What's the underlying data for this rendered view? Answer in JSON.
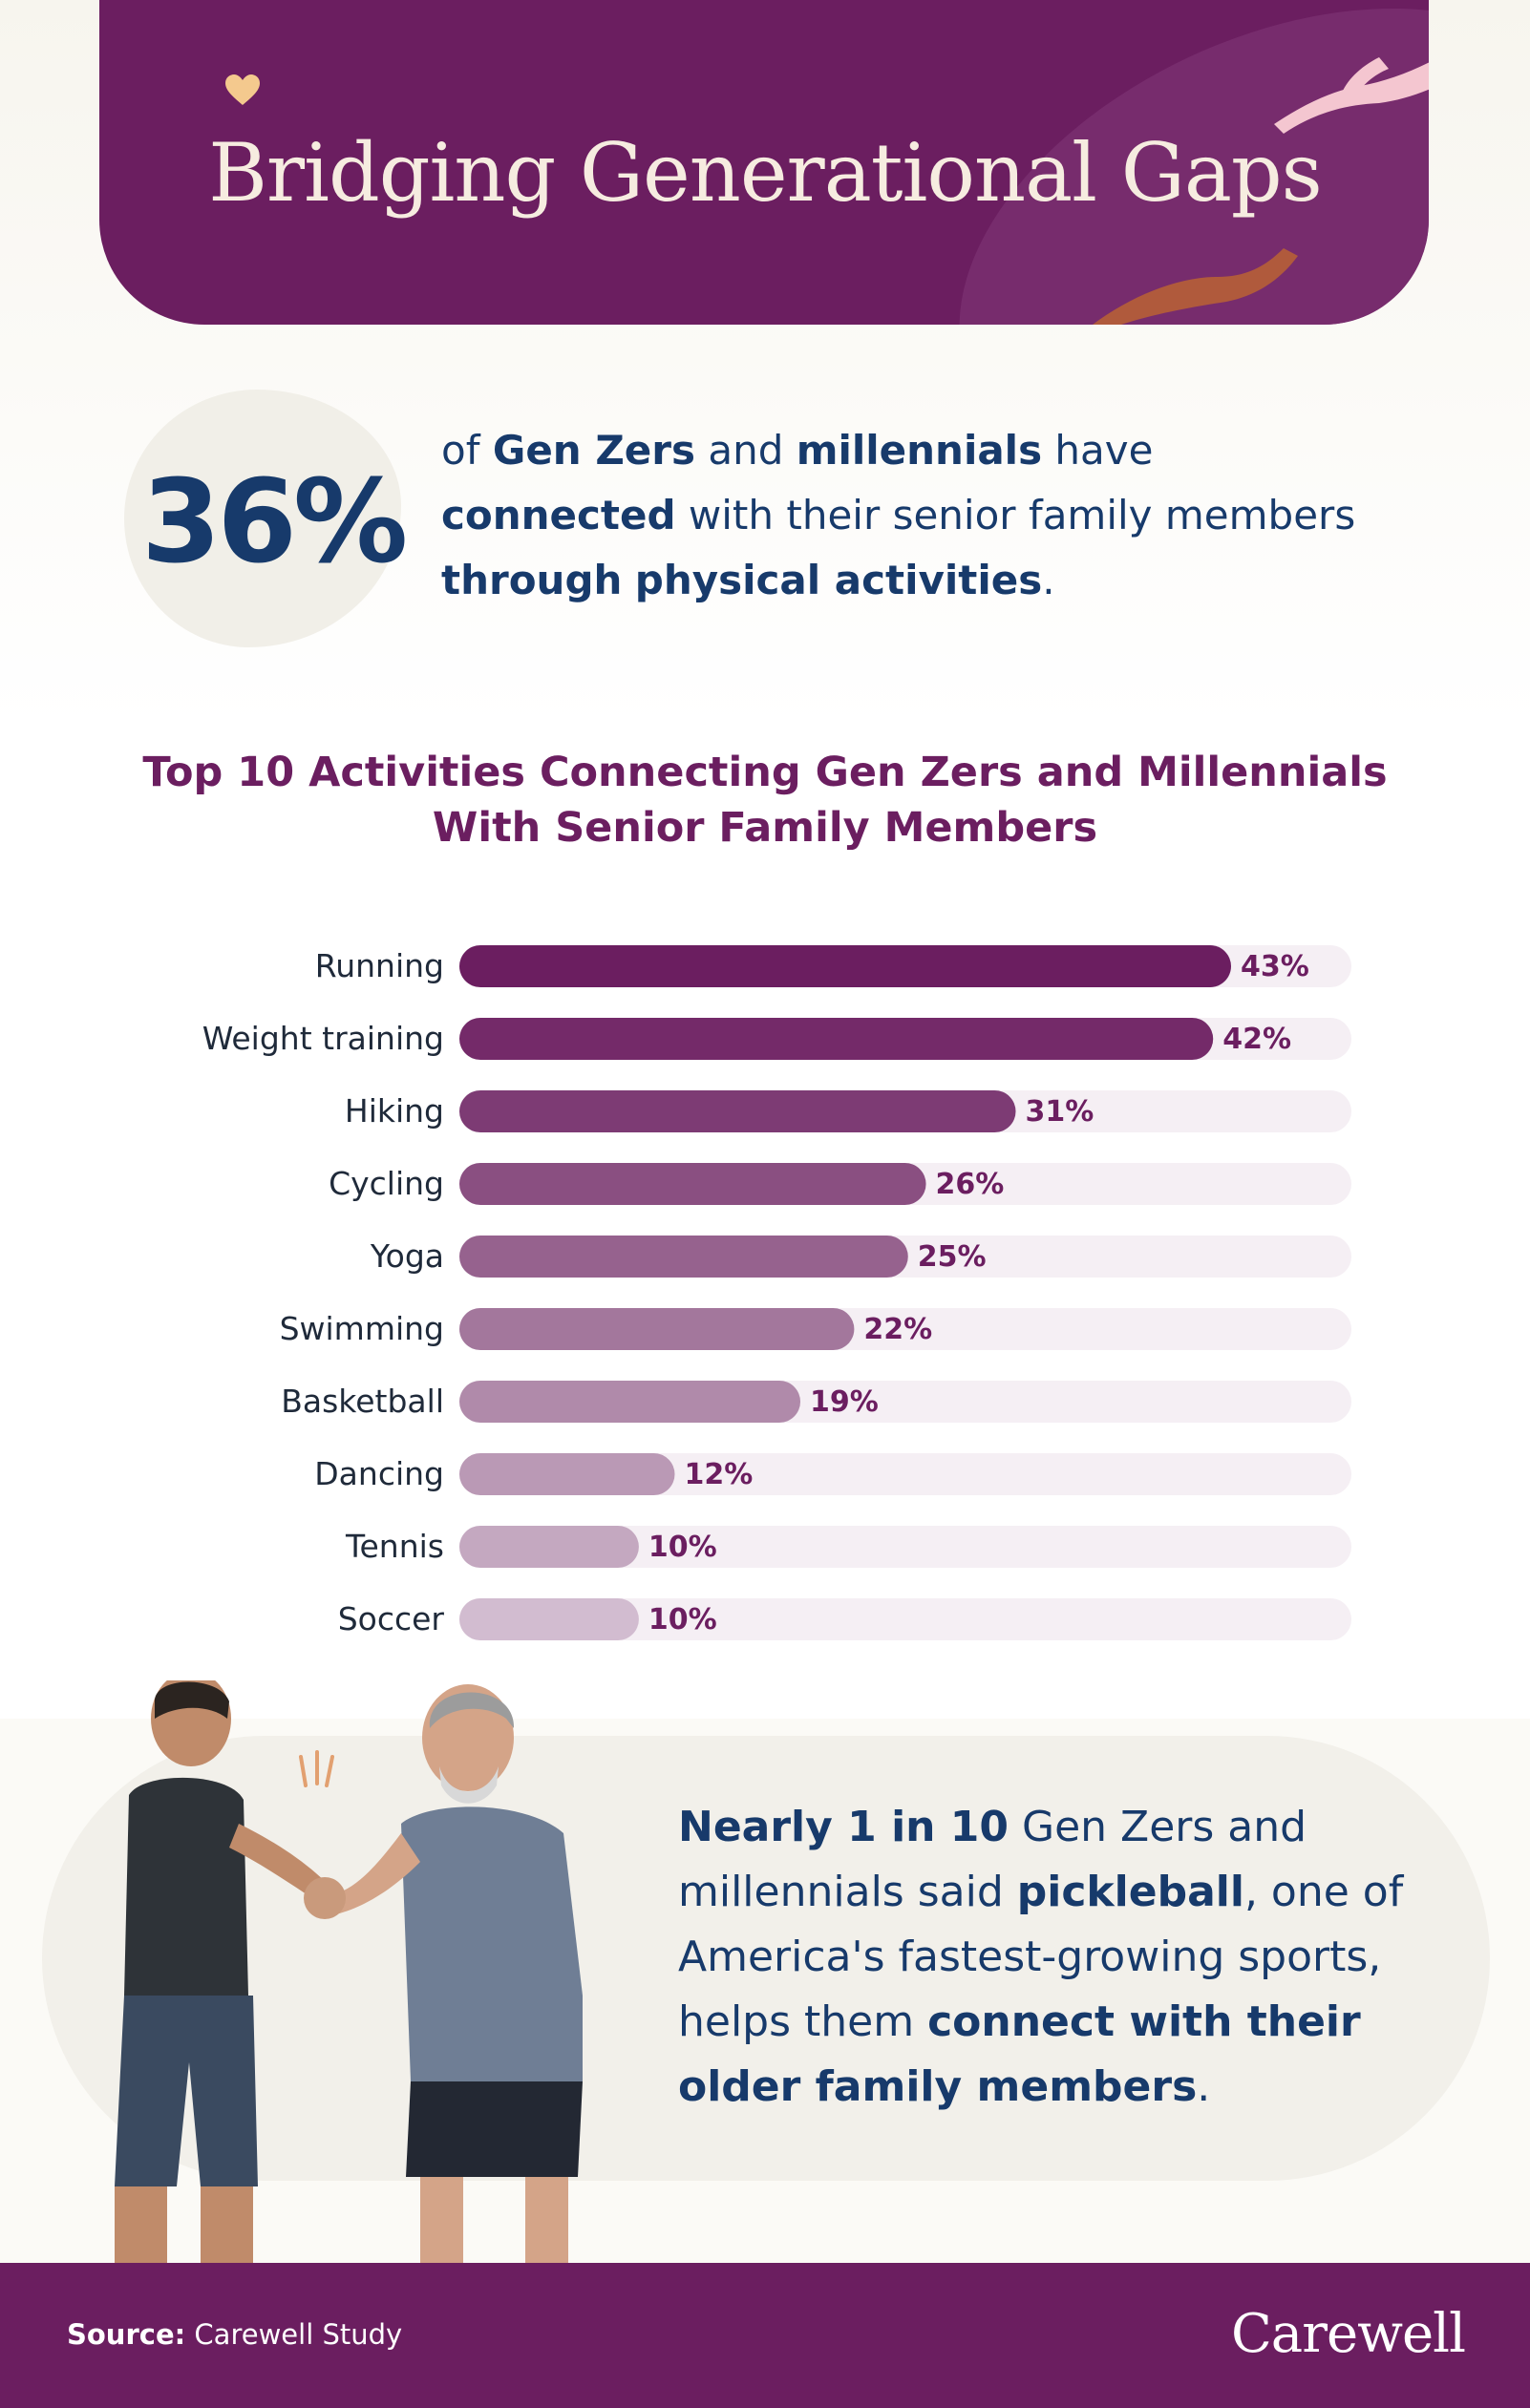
{
  "header": {
    "title": "Bridging Generational Gaps"
  },
  "stat": {
    "number": "36%",
    "t1": "of ",
    "b1": "Gen Zers",
    "t2": " and ",
    "b2": "millennials",
    "t3": " have ",
    "b3": "connected",
    "t4": " with their senior family members ",
    "b4": "through",
    "t5": " ",
    "b5": "physical activities",
    "t6": "."
  },
  "chart_data": {
    "type": "bar",
    "orientation": "horizontal",
    "title": "Top 10 Activities Connecting Gen Zers and Millennials With Senior Family Members",
    "categories": [
      "Running",
      "Weight training",
      "Hiking",
      "Cycling",
      "Yoga",
      "Swimming",
      "Basketball",
      "Dancing",
      "Tennis",
      "Soccer"
    ],
    "values": [
      43,
      42,
      31,
      26,
      25,
      22,
      19,
      12,
      10,
      10
    ],
    "value_labels": [
      "43%",
      "42%",
      "31%",
      "26%",
      "25%",
      "22%",
      "19%",
      "12%",
      "10%",
      "10%"
    ],
    "xlim": [
      0,
      50
    ],
    "colors": [
      "#6b1e60",
      "#742a69",
      "#7d3b74",
      "#8a4f81",
      "#96628e",
      "#a3779c",
      "#b08aaa",
      "#ba99b5",
      "#c4a8c0",
      "#d2bcd0"
    ],
    "track_color": "#f5eff4",
    "grid": false
  },
  "note": {
    "b1": "Nearly 1 in 10",
    "t1": " Gen Zers and millennials said ",
    "b2": "pickleball",
    "t2": ", one of America's fastest-growing sports, helps them ",
    "b3": "connect with their older family members",
    "t3": "."
  },
  "footer": {
    "source_label": "Source:",
    "source_text": " Carewell Study",
    "brand": "Carewell"
  },
  "colors": {
    "primary": "#6b1e60",
    "navy": "#173a6b",
    "cream": "#f6ece0"
  }
}
